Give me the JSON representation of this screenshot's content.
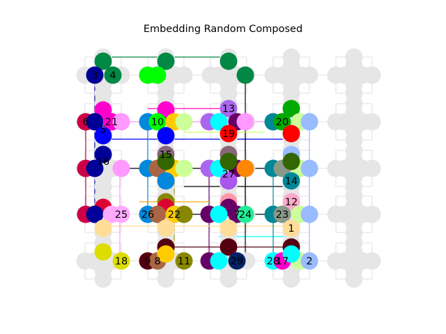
{
  "title": "Embedding Random Composed",
  "colors": {
    "background": "#ffffff",
    "grid_node": "#e6e6e6",
    "grid_edge": "#e6e6e6",
    "text": "#000000"
  },
  "graph": {
    "grid_columns": 5,
    "grid_rows": 5,
    "labeled_nodes": [
      "1",
      "2",
      "3",
      "4",
      "5",
      "6",
      "7",
      "8",
      "9",
      "10",
      "11",
      "12",
      "13",
      "14",
      "15",
      "16",
      "17",
      "18",
      "19",
      "20",
      "21",
      "22",
      "23",
      "24",
      "25",
      "26",
      "27",
      "28",
      "29"
    ],
    "embedded_node_colors": [
      "#008844",
      "#00ff00",
      "#000099",
      "#ff00cc",
      "#ff99ff",
      "#cc0044",
      "#0000ff",
      "#0088dd",
      "#ffcc00",
      "#ccff99",
      "#aa66ee",
      "#00ffff",
      "#660066",
      "#ff0000",
      "#008899",
      "#ccff66",
      "#99bbff",
      "#ffaa00",
      "#aa6644",
      "#336600",
      "#888800",
      "#886677",
      "#ffdd99",
      "#ff99aa",
      "#dd0033",
      "#22ee99",
      "#550011",
      "#002266",
      "#889988",
      "#dddd00",
      "#aa55ee",
      "#ffaacc"
    ]
  }
}
